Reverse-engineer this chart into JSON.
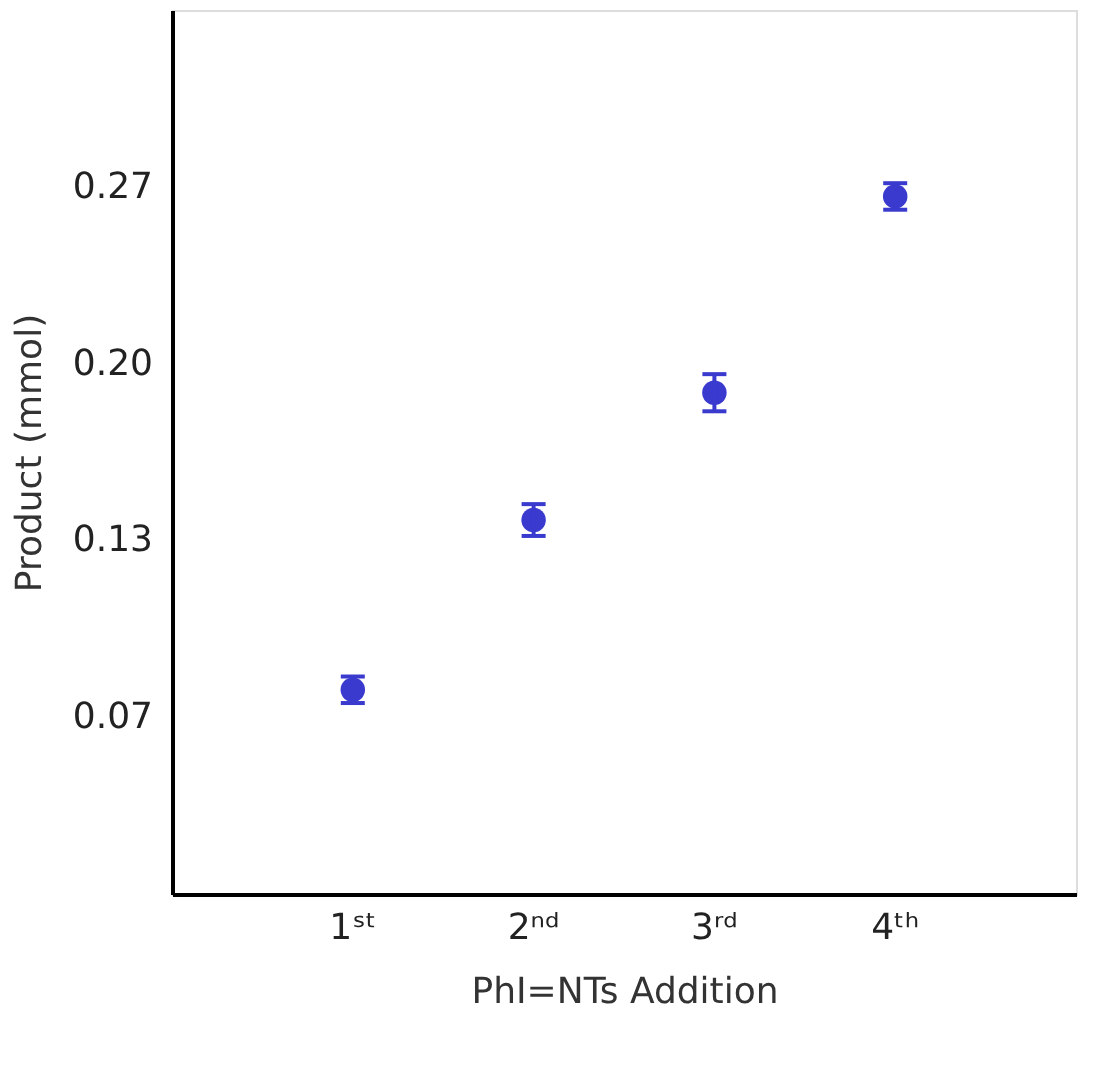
{
  "chart_data": {
    "type": "scatter",
    "xlabel": "PhI=NTs Addition",
    "ylabel": "Product (mmol)",
    "categories": [
      "1ˢᵗ",
      "2ⁿᵈ",
      "3ʳᵈ",
      "4ᵗʰ"
    ],
    "series": [
      {
        "color": "#3a3acf",
        "values": [
          0.077,
          0.141,
          0.189,
          0.263
        ],
        "errors": [
          0.005,
          0.006,
          0.007,
          0.005
        ]
      }
    ],
    "ylim": [
      0,
      0.3333
    ],
    "yticks": [
      {
        "value": 0.0667,
        "label": "0.07"
      },
      {
        "value": 0.1333,
        "label": "0.13"
      },
      {
        "value": 0.2,
        "label": "0.20"
      },
      {
        "value": 0.2667,
        "label": "0.27"
      }
    ],
    "marker": "circle",
    "grid": false
  }
}
